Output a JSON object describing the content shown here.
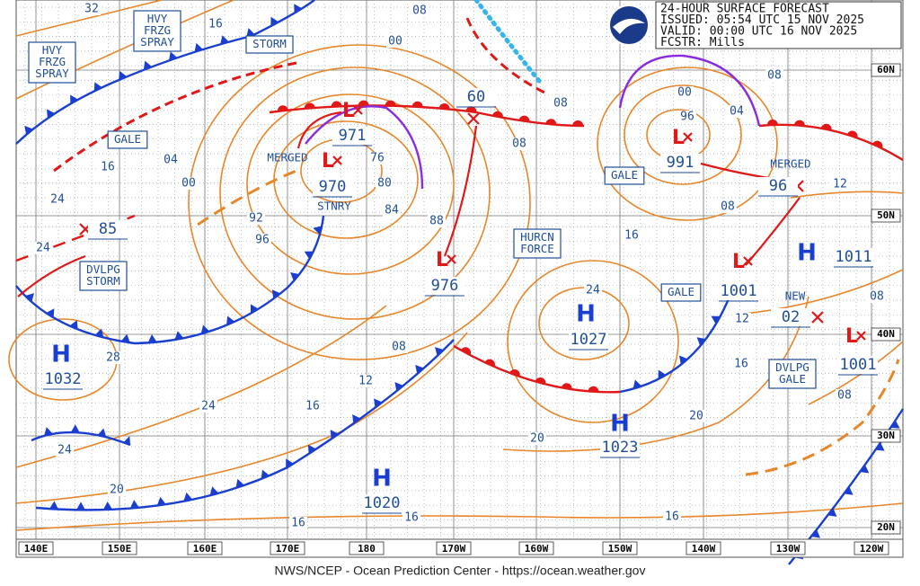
{
  "header": {
    "lines": [
      "24-HOUR SURFACE FORECAST",
      "ISSUED: 05:54 UTC 15 NOV 2025",
      "VALID:  00:00 UTC 16 NOV 2025",
      "FCSTR:  Mills"
    ]
  },
  "footer": "NWS/NCEP - Ocean Prediction Center - https://ocean.weather.gov",
  "longitudes": [
    "140E",
    "150E",
    "160E",
    "170E",
    "180",
    "170W",
    "160W",
    "150W",
    "140W",
    "130W",
    "120W"
  ],
  "latitudes": [
    "60N",
    "50N",
    "40N",
    "30N",
    "20N"
  ],
  "centers": [
    {
      "symbol": "H",
      "pressure": "1032"
    },
    {
      "symbol": "H",
      "pressure": "1027"
    },
    {
      "symbol": "H",
      "pressure": "1023"
    },
    {
      "symbol": "H",
      "pressure": "1020"
    },
    {
      "symbol": "H",
      "pressure": "1011"
    },
    {
      "symbol": "L",
      "pressure": "971"
    },
    {
      "symbol": "L",
      "pressure": "970"
    },
    {
      "symbol": "L",
      "pressure": "976"
    },
    {
      "symbol": "L",
      "pressure": "991"
    },
    {
      "symbol": "L",
      "pressure": "1001"
    },
    {
      "symbol": "L",
      "pressure": "1001"
    },
    {
      "pressure": "85"
    },
    {
      "pressure": "60"
    },
    {
      "pressure": "96"
    },
    {
      "pressure": "02"
    }
  ],
  "boxes": [
    {
      "lines": [
        "HVY",
        "FRZG",
        "SPRAY"
      ]
    },
    {
      "lines": [
        "HVY",
        "FRZG",
        "SPRAY"
      ]
    },
    {
      "lines": [
        "STORM"
      ]
    },
    {
      "lines": [
        "GALE"
      ]
    },
    {
      "lines": [
        "GALE"
      ]
    },
    {
      "lines": [
        "GALE"
      ]
    },
    {
      "lines": [
        "DVLPG",
        "STORM"
      ]
    },
    {
      "lines": [
        "HURCN",
        "FORCE"
      ]
    },
    {
      "lines": [
        "DVLPG",
        "GALE"
      ]
    }
  ],
  "notes": [
    "STNRY",
    "MERGED",
    "MERGED",
    "NEW"
  ],
  "isobars": [
    "32",
    "16",
    "08",
    "00",
    "16",
    "04",
    "00",
    "24",
    "24",
    "92",
    "96",
    "76",
    "80",
    "84",
    "88",
    "08",
    "08",
    "00",
    "96",
    "04",
    "08",
    "12",
    "08",
    "16",
    "24",
    "12",
    "16",
    "08",
    "08",
    "28",
    "24",
    "16",
    "12",
    "08",
    "20",
    "20",
    "24",
    "20",
    "16",
    "16",
    "16"
  ]
}
